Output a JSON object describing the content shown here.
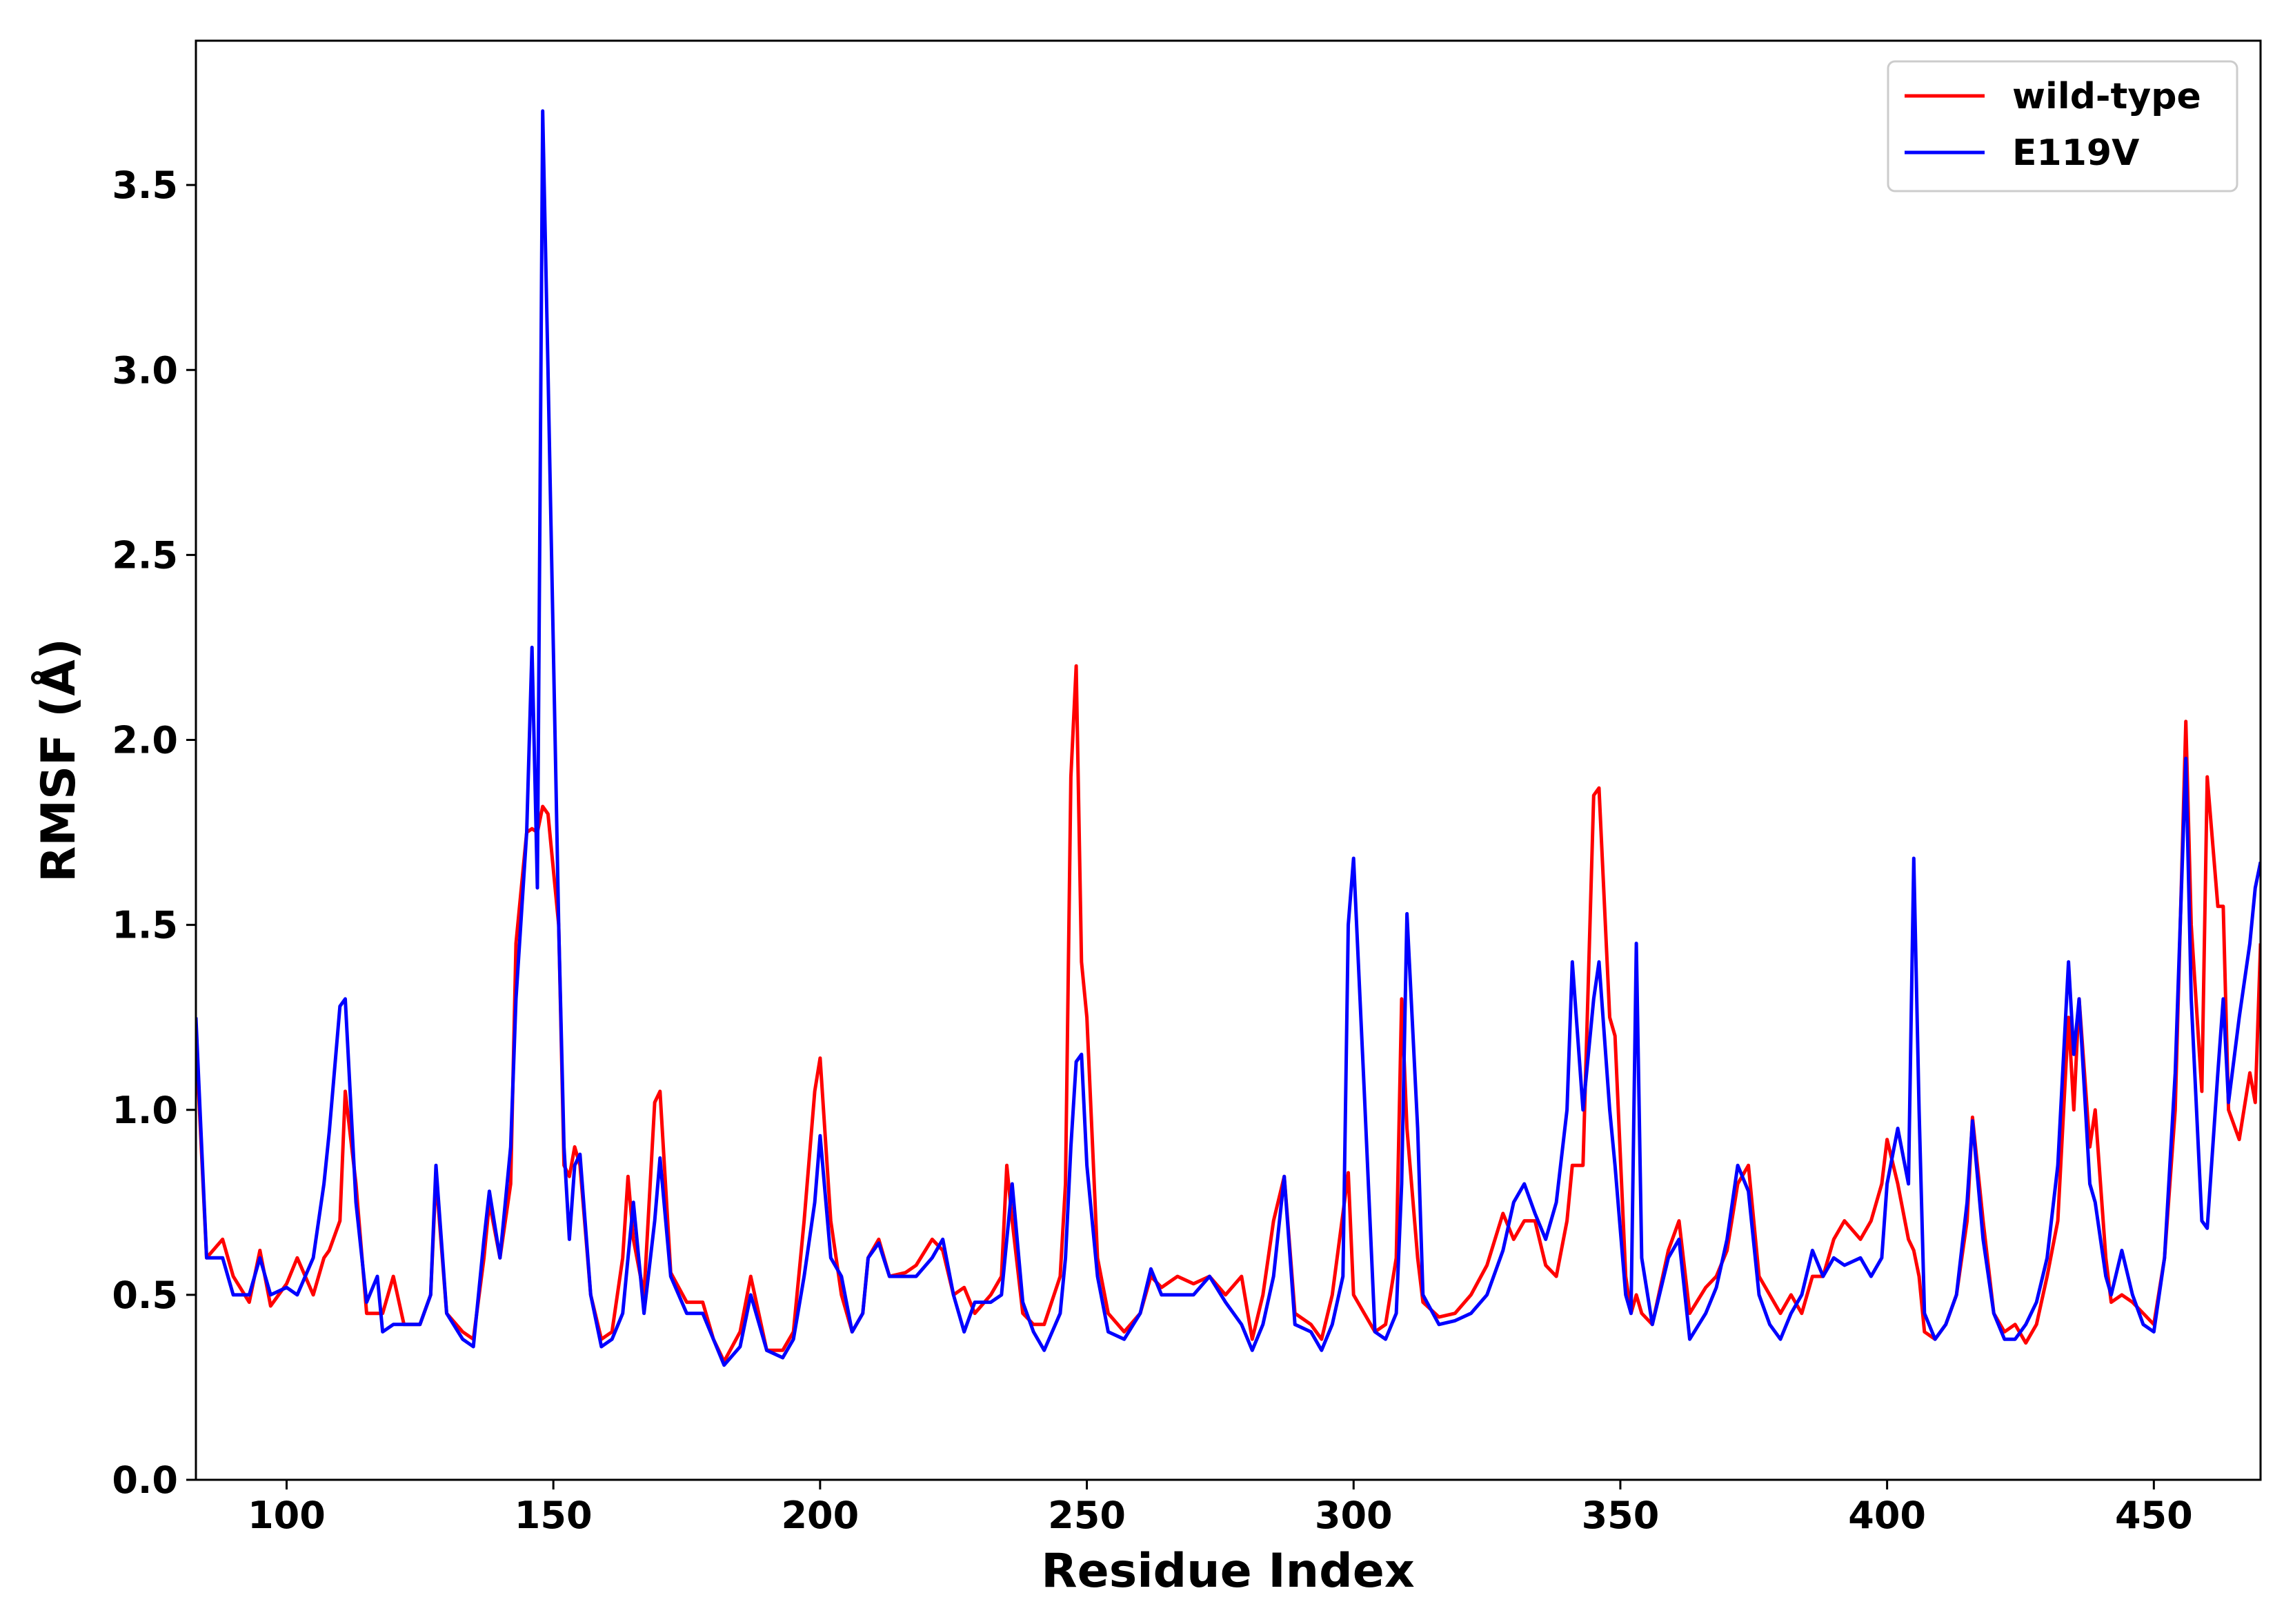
{
  "chart_data": {
    "type": "line",
    "x_label": "Residue Index",
    "y_label": "RMSF (Å)",
    "xlim": [
      83,
      470
    ],
    "ylim": [
      0,
      3.89
    ],
    "xticks": [
      100,
      150,
      200,
      250,
      300,
      350,
      400,
      450
    ],
    "yticks": [
      {
        "value": 0,
        "label": "0.0"
      },
      0.5,
      {
        "value": 1,
        "label": "1.0"
      },
      1.5,
      {
        "value": 2,
        "label": "2.0"
      },
      2.5,
      {
        "value": 3,
        "label": "3.0"
      },
      3.5
    ],
    "legend": "upper right",
    "x": [
      83,
      85,
      88,
      90,
      93,
      95,
      97,
      100,
      102,
      105,
      107,
      108,
      110,
      111,
      113,
      115,
      117,
      118,
      120,
      122,
      125,
      127,
      128,
      130,
      133,
      135,
      137,
      138,
      140,
      142,
      143,
      145,
      146,
      147,
      148,
      149,
      151,
      152,
      153,
      154,
      155,
      157,
      159,
      161,
      163,
      164,
      165,
      167,
      169,
      170,
      172,
      175,
      178,
      180,
      182,
      185,
      187,
      190,
      193,
      195,
      197,
      199,
      200,
      202,
      204,
      206,
      208,
      209,
      211,
      213,
      216,
      218,
      221,
      223,
      225,
      227,
      229,
      232,
      234,
      235,
      236,
      238,
      240,
      242,
      245,
      246,
      247,
      248,
      249,
      250,
      252,
      254,
      257,
      260,
      262,
      264,
      267,
      270,
      273,
      276,
      279,
      281,
      283,
      285,
      287,
      289,
      292,
      294,
      296,
      298,
      299,
      300,
      302,
      304,
      306,
      308,
      309,
      310,
      312,
      313,
      316,
      319,
      322,
      325,
      328,
      330,
      332,
      334,
      336,
      338,
      340,
      341,
      343,
      345,
      346,
      348,
      349,
      351,
      352,
      353,
      354,
      356,
      359,
      361,
      363,
      366,
      368,
      370,
      372,
      374,
      376,
      378,
      380,
      382,
      384,
      386,
      388,
      390,
      392,
      395,
      397,
      399,
      400,
      402,
      404,
      405,
      406,
      407,
      409,
      411,
      413,
      415,
      416,
      418,
      420,
      422,
      424,
      426,
      428,
      430,
      432,
      434,
      435,
      436,
      438,
      439,
      441,
      442,
      444,
      446,
      448,
      450,
      452,
      454,
      456,
      457,
      459,
      460,
      462,
      463,
      464,
      466,
      468,
      469,
      470
    ],
    "series": [
      {
        "name": "wild-type",
        "color": "#ff0000",
        "values": [
          1.2,
          0.6,
          0.65,
          0.55,
          0.48,
          0.62,
          0.47,
          0.53,
          0.6,
          0.5,
          0.6,
          0.62,
          0.7,
          1.05,
          0.8,
          0.45,
          0.45,
          0.45,
          0.55,
          0.42,
          0.42,
          0.5,
          0.82,
          0.45,
          0.4,
          0.38,
          0.6,
          0.75,
          0.6,
          0.8,
          1.45,
          1.75,
          1.76,
          1.75,
          1.82,
          1.8,
          1.5,
          0.85,
          0.82,
          0.9,
          0.85,
          0.5,
          0.38,
          0.4,
          0.6,
          0.82,
          0.65,
          0.5,
          1.02,
          1.05,
          0.56,
          0.48,
          0.48,
          0.38,
          0.32,
          0.4,
          0.55,
          0.35,
          0.35,
          0.4,
          0.7,
          1.05,
          1.14,
          0.7,
          0.5,
          0.4,
          0.45,
          0.6,
          0.65,
          0.55,
          0.56,
          0.58,
          0.65,
          0.62,
          0.5,
          0.52,
          0.45,
          0.5,
          0.55,
          0.85,
          0.7,
          0.45,
          0.42,
          0.42,
          0.55,
          0.8,
          1.9,
          2.2,
          1.4,
          1.25,
          0.6,
          0.45,
          0.4,
          0.45,
          0.55,
          0.52,
          0.55,
          0.53,
          0.55,
          0.5,
          0.55,
          0.38,
          0.5,
          0.7,
          0.82,
          0.45,
          0.42,
          0.38,
          0.5,
          0.72,
          0.83,
          0.5,
          0.45,
          0.4,
          0.42,
          0.6,
          1.3,
          0.95,
          0.6,
          0.48,
          0.44,
          0.45,
          0.5,
          0.58,
          0.72,
          0.65,
          0.7,
          0.7,
          0.58,
          0.55,
          0.7,
          0.85,
          0.85,
          1.85,
          1.87,
          1.25,
          1.2,
          0.55,
          0.45,
          0.5,
          0.45,
          0.42,
          0.62,
          0.7,
          0.45,
          0.52,
          0.55,
          0.62,
          0.8,
          0.85,
          0.55,
          0.5,
          0.45,
          0.5,
          0.45,
          0.55,
          0.55,
          0.65,
          0.7,
          0.65,
          0.7,
          0.8,
          0.92,
          0.8,
          0.65,
          0.62,
          0.55,
          0.4,
          0.38,
          0.42,
          0.5,
          0.7,
          0.98,
          0.7,
          0.45,
          0.4,
          0.42,
          0.37,
          0.42,
          0.55,
          0.7,
          1.25,
          1.0,
          1.3,
          0.9,
          1.0,
          0.6,
          0.48,
          0.5,
          0.48,
          0.45,
          0.42,
          0.6,
          1.0,
          2.05,
          1.5,
          1.05,
          1.9,
          1.55,
          1.55,
          1.0,
          0.92,
          1.1,
          1.02,
          1.45
        ]
      },
      {
        "name": "E119V",
        "color": "#0000ff",
        "values": [
          1.25,
          0.6,
          0.6,
          0.5,
          0.5,
          0.6,
          0.5,
          0.52,
          0.5,
          0.6,
          0.8,
          0.94,
          1.28,
          1.3,
          0.75,
          0.48,
          0.55,
          0.4,
          0.42,
          0.42,
          0.42,
          0.5,
          0.85,
          0.45,
          0.38,
          0.36,
          0.65,
          0.78,
          0.6,
          0.9,
          1.3,
          1.75,
          2.25,
          1.6,
          3.7,
          3.0,
          1.5,
          0.9,
          0.65,
          0.85,
          0.88,
          0.5,
          0.36,
          0.38,
          0.45,
          0.6,
          0.75,
          0.45,
          0.7,
          0.87,
          0.55,
          0.45,
          0.45,
          0.38,
          0.31,
          0.36,
          0.5,
          0.35,
          0.33,
          0.38,
          0.55,
          0.75,
          0.93,
          0.6,
          0.55,
          0.4,
          0.45,
          0.6,
          0.64,
          0.55,
          0.55,
          0.55,
          0.6,
          0.65,
          0.5,
          0.4,
          0.48,
          0.48,
          0.5,
          0.65,
          0.8,
          0.48,
          0.4,
          0.35,
          0.45,
          0.6,
          0.9,
          1.13,
          1.15,
          0.85,
          0.55,
          0.4,
          0.38,
          0.45,
          0.57,
          0.5,
          0.5,
          0.5,
          0.55,
          0.48,
          0.42,
          0.35,
          0.42,
          0.55,
          0.82,
          0.42,
          0.4,
          0.35,
          0.42,
          0.55,
          1.5,
          1.68,
          1.05,
          0.4,
          0.38,
          0.45,
          0.8,
          1.53,
          0.95,
          0.5,
          0.42,
          0.43,
          0.45,
          0.5,
          0.62,
          0.75,
          0.8,
          0.72,
          0.65,
          0.75,
          1.0,
          1.4,
          1.0,
          1.3,
          1.4,
          1.0,
          0.85,
          0.5,
          0.45,
          1.45,
          0.6,
          0.42,
          0.6,
          0.65,
          0.38,
          0.45,
          0.52,
          0.65,
          0.85,
          0.78,
          0.5,
          0.42,
          0.38,
          0.45,
          0.5,
          0.62,
          0.55,
          0.6,
          0.58,
          0.6,
          0.55,
          0.6,
          0.8,
          0.95,
          0.8,
          1.68,
          1.0,
          0.45,
          0.38,
          0.42,
          0.5,
          0.75,
          0.97,
          0.65,
          0.45,
          0.38,
          0.38,
          0.42,
          0.48,
          0.6,
          0.85,
          1.4,
          1.15,
          1.3,
          0.8,
          0.75,
          0.55,
          0.5,
          0.62,
          0.5,
          0.42,
          0.4,
          0.6,
          1.1,
          1.95,
          1.3,
          0.7,
          0.68,
          1.1,
          1.3,
          1.02,
          1.25,
          1.45,
          1.6,
          1.67
        ]
      }
    ]
  }
}
